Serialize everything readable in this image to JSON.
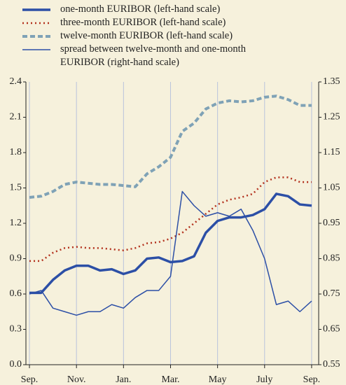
{
  "chart_data": {
    "type": "line",
    "x": [
      0,
      0.5,
      1,
      1.5,
      2,
      2.5,
      3,
      3.5,
      4,
      4.5,
      5,
      5.5,
      6,
      6.5,
      7,
      7.5,
      8,
      8.5,
      9,
      9.5,
      10,
      10.5,
      11,
      11.5,
      12
    ],
    "xlim": [
      -0.15,
      12.3
    ],
    "xticks": [
      {
        "value": 0,
        "label": "Sep."
      },
      {
        "value": 2,
        "label": "Nov."
      },
      {
        "value": 4,
        "label": "Jan."
      },
      {
        "value": 6,
        "label": "Mar."
      },
      {
        "value": 8,
        "label": "May"
      },
      {
        "value": 10,
        "label": "July"
      },
      {
        "value": 12,
        "label": "Sep."
      }
    ],
    "ylim": [
      0,
      2.4
    ],
    "yticks": [
      {
        "value": 0,
        "label": "0.0"
      },
      0.3,
      0.6,
      0.9,
      1.2,
      1.5,
      1.8,
      2.1,
      2.4
    ],
    "y2lim": [
      0.55,
      1.35
    ],
    "y2ticks": [
      0.55,
      0.65,
      0.75,
      0.85,
      0.95,
      1.05,
      1.15,
      1.25,
      1.35
    ],
    "grid": true,
    "series": [
      {
        "name": "one-month EURIBOR (left-hand scale)",
        "color": "#2c4fa6",
        "width": 3.5,
        "style": "solid",
        "values": [
          0.61,
          0.61,
          0.72,
          0.8,
          0.84,
          0.84,
          0.8,
          0.81,
          0.77,
          0.8,
          0.9,
          0.91,
          0.87,
          0.88,
          0.92,
          1.12,
          1.22,
          1.25,
          1.25,
          1.27,
          1.32,
          1.45,
          1.43,
          1.36,
          1.35
        ]
      },
      {
        "name": "three-month EURIBOR (left-hand scale)",
        "color": "#b3321e",
        "width": 2.5,
        "style": "dotted",
        "values": [
          0.88,
          0.88,
          0.95,
          0.99,
          1.0,
          0.99,
          0.99,
          0.98,
          0.97,
          0.99,
          1.03,
          1.04,
          1.07,
          1.12,
          1.2,
          1.28,
          1.36,
          1.4,
          1.42,
          1.45,
          1.55,
          1.59,
          1.59,
          1.55,
          1.55
        ]
      },
      {
        "name": "twelve-month EURIBOR (left-hand scale)",
        "color": "#7fa2b6",
        "width": 4,
        "style": "dashed",
        "values": [
          1.42,
          1.43,
          1.47,
          1.53,
          1.55,
          1.54,
          1.53,
          1.53,
          1.52,
          1.51,
          1.62,
          1.68,
          1.76,
          1.98,
          2.05,
          2.17,
          2.22,
          2.24,
          2.23,
          2.24,
          2.27,
          2.28,
          2.25,
          2.2,
          2.2
        ]
      },
      {
        "name": "spread between twelve-month and one-month EURIBOR (right-hand scale)",
        "color": "#2c4fa6",
        "width": 1.5,
        "style": "solid",
        "axis": "y2",
        "values": [
          0.75,
          0.76,
          0.71,
          0.7,
          0.69,
          0.7,
          0.7,
          0.72,
          0.71,
          0.74,
          0.76,
          0.76,
          0.8,
          1.04,
          1.0,
          0.97,
          0.98,
          0.97,
          0.99,
          0.93,
          0.85,
          0.72,
          0.73,
          0.7,
          0.73
        ]
      }
    ]
  }
}
